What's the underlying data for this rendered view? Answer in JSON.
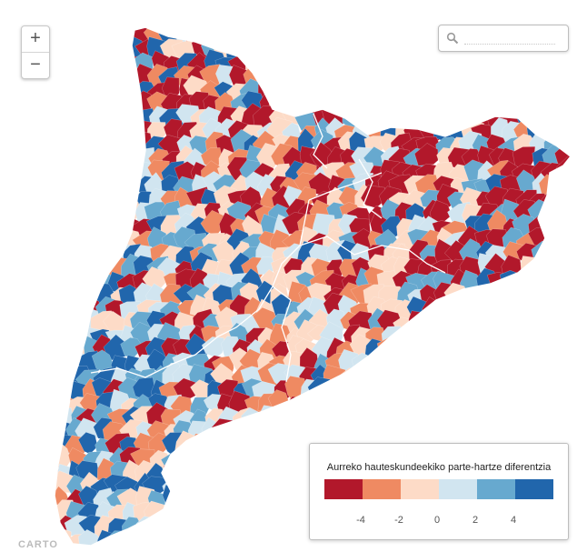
{
  "map": {
    "palette": [
      "#b2182b",
      "#ef8a62",
      "#fddbc7",
      "#d1e5f0",
      "#67a9cf",
      "#2166ac"
    ]
  },
  "zoom": {
    "in_label": "+",
    "out_label": "−"
  },
  "search": {
    "icon": "search-icon",
    "placeholder": "",
    "value": ""
  },
  "legend": {
    "title": "Aurreko hauteskundeekiko parte-hartze diferentzia",
    "colors": [
      "#b2182b",
      "#ef8a62",
      "#fddbc7",
      "#d1e5f0",
      "#67a9cf",
      "#2166ac"
    ],
    "ticks": [
      "-4",
      "-2",
      "0",
      "2",
      "4"
    ]
  }
}
